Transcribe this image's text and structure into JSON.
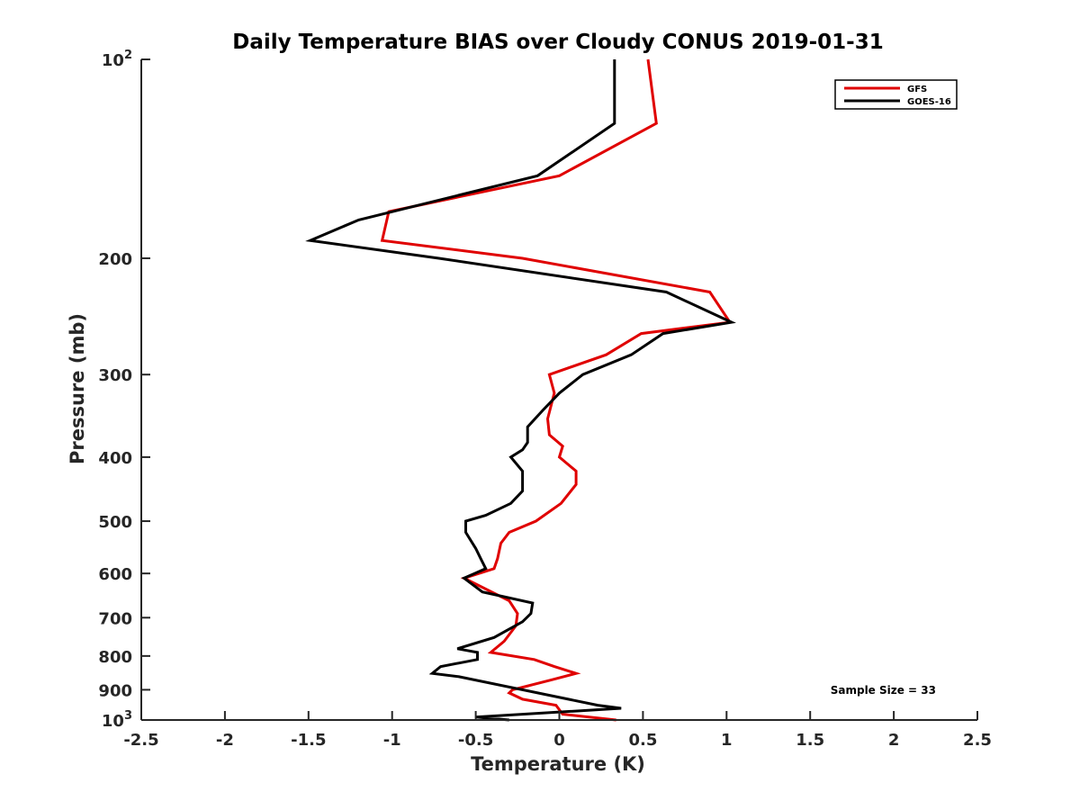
{
  "chart_data": {
    "type": "line",
    "title": "Daily Temperature BIAS over Cloudy CONUS 2019-01-31",
    "xlabel": "Temperature (K)",
    "ylabel": "Pressure (mb)",
    "xlim": [
      -2.5,
      2.5
    ],
    "ylim": [
      100,
      1000
    ],
    "y_scale": "log",
    "y_reversed": true,
    "x_ticks": [
      -2.5,
      -2,
      -1.5,
      -1,
      -0.5,
      0,
      0.5,
      1,
      1.5,
      2,
      2.5
    ],
    "x_tick_labels": [
      "-2.5",
      "-2",
      "-1.5",
      "-1",
      "-0.5",
      "0",
      "0.5",
      "1",
      "1.5",
      "2",
      "2.5"
    ],
    "y_ticks": [
      100,
      200,
      300,
      400,
      500,
      600,
      700,
      800,
      900,
      1000
    ],
    "y_tick_labels": [
      {
        "base": "10",
        "exp": "2"
      },
      {
        "base": "200",
        "exp": ""
      },
      {
        "base": "300",
        "exp": ""
      },
      {
        "base": "400",
        "exp": ""
      },
      {
        "base": "500",
        "exp": ""
      },
      {
        "base": "600",
        "exp": ""
      },
      {
        "base": "700",
        "exp": ""
      },
      {
        "base": "800",
        "exp": ""
      },
      {
        "base": "900",
        "exp": ""
      },
      {
        "base": "10",
        "exp": "3"
      }
    ],
    "grid": false,
    "legend_position": "top-right",
    "annotation": "Sample Size = 33",
    "series": [
      {
        "name": "GFS",
        "color": "#e00000",
        "points": [
          [
            0.53,
            100
          ],
          [
            0.58,
            125
          ],
          [
            0.0,
            150
          ],
          [
            -1.02,
            170
          ],
          [
            -1.06,
            188
          ],
          [
            -0.22,
            200
          ],
          [
            0.9,
            225
          ],
          [
            1.02,
            250
          ],
          [
            0.49,
            260
          ],
          [
            0.28,
            280
          ],
          [
            -0.06,
            300
          ],
          [
            -0.03,
            320
          ],
          [
            -0.07,
            350
          ],
          [
            -0.06,
            370
          ],
          [
            0.02,
            385
          ],
          [
            0.0,
            400
          ],
          [
            0.1,
            420
          ],
          [
            0.1,
            440
          ],
          [
            0.01,
            470
          ],
          [
            -0.14,
            500
          ],
          [
            -0.3,
            520
          ],
          [
            -0.35,
            540
          ],
          [
            -0.37,
            570
          ],
          [
            -0.39,
            590
          ],
          [
            -0.57,
            610
          ],
          [
            -0.3,
            660
          ],
          [
            -0.25,
            690
          ],
          [
            -0.26,
            720
          ],
          [
            -0.33,
            760
          ],
          [
            -0.41,
            790
          ],
          [
            -0.15,
            810
          ],
          [
            -0.03,
            830
          ],
          [
            0.1,
            850
          ],
          [
            -0.05,
            870
          ],
          [
            -0.28,
            900
          ],
          [
            -0.3,
            910
          ],
          [
            -0.22,
            930
          ],
          [
            -0.02,
            950
          ],
          [
            0.02,
            980
          ],
          [
            0.34,
            1000
          ]
        ]
      },
      {
        "name": "GOES-16",
        "color": "#000000",
        "points": [
          [
            0.33,
            100
          ],
          [
            0.33,
            125
          ],
          [
            -0.13,
            150
          ],
          [
            -1.2,
            175
          ],
          [
            -1.49,
            188
          ],
          [
            -0.72,
            200
          ],
          [
            0.64,
            225
          ],
          [
            1.03,
            250
          ],
          [
            0.62,
            260
          ],
          [
            0.43,
            280
          ],
          [
            0.14,
            300
          ],
          [
            0.0,
            320
          ],
          [
            -0.1,
            340
          ],
          [
            -0.19,
            360
          ],
          [
            -0.19,
            380
          ],
          [
            -0.22,
            390
          ],
          [
            -0.29,
            400
          ],
          [
            -0.22,
            420
          ],
          [
            -0.22,
            450
          ],
          [
            -0.29,
            470
          ],
          [
            -0.44,
            490
          ],
          [
            -0.56,
            500
          ],
          [
            -0.56,
            520
          ],
          [
            -0.5,
            550
          ],
          [
            -0.47,
            570
          ],
          [
            -0.44,
            590
          ],
          [
            -0.57,
            610
          ],
          [
            -0.46,
            640
          ],
          [
            -0.16,
            665
          ],
          [
            -0.17,
            690
          ],
          [
            -0.22,
            710
          ],
          [
            -0.39,
            750
          ],
          [
            -0.61,
            780
          ],
          [
            -0.49,
            790
          ],
          [
            -0.49,
            810
          ],
          [
            -0.71,
            830
          ],
          [
            -0.76,
            850
          ],
          [
            -0.6,
            860
          ],
          [
            0.23,
            950
          ],
          [
            0.37,
            960
          ],
          [
            -0.5,
            990
          ],
          [
            -0.3,
            1000
          ]
        ]
      }
    ]
  }
}
